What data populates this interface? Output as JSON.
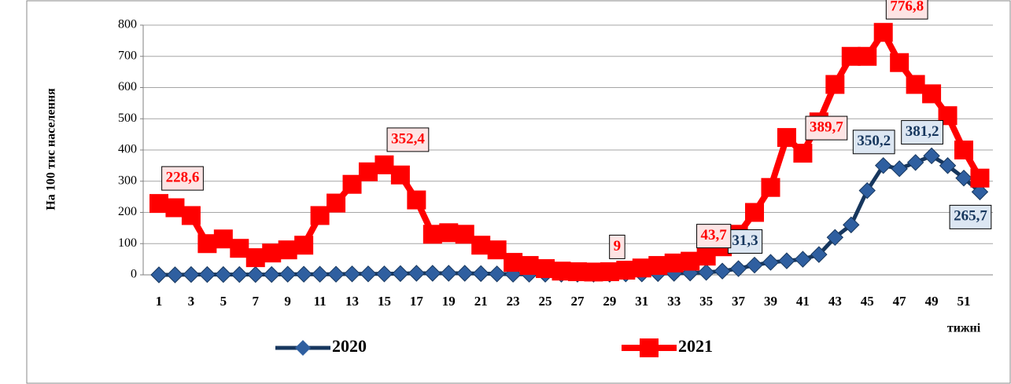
{
  "chart_data": {
    "type": "line",
    "y_label": "На 100 тис населення",
    "x_label": "тижні",
    "categories": [
      1,
      null,
      3,
      null,
      5,
      null,
      7,
      null,
      9,
      null,
      11,
      null,
      13,
      null,
      15,
      null,
      17,
      null,
      19,
      null,
      21,
      null,
      23,
      null,
      25,
      null,
      27,
      null,
      29,
      null,
      31,
      null,
      33,
      null,
      35,
      null,
      37,
      null,
      39,
      null,
      41,
      null,
      43,
      null,
      45,
      null,
      47,
      null,
      49,
      null,
      51,
      null
    ],
    "series": [
      {
        "name": "2020",
        "color": "#17375e",
        "marker_color": "#2f5fa0",
        "marker": "diamond",
        "label_fill": "#dce6f2",
        "values": [
          0,
          0,
          1,
          1,
          1,
          1,
          1,
          1,
          2,
          2,
          2,
          2,
          3,
          3,
          3,
          4,
          5,
          5,
          5,
          5,
          4,
          3,
          2,
          2,
          2,
          2,
          2,
          2,
          2,
          3,
          3,
          4,
          5,
          6,
          8,
          12,
          20,
          31.3,
          40,
          45,
          50,
          65,
          120,
          160,
          270,
          350.2,
          340,
          360,
          381.2,
          350,
          310,
          265.7
        ],
        "value_labels": [
          null,
          null,
          null,
          null,
          null,
          null,
          null,
          null,
          null,
          null,
          null,
          null,
          null,
          null,
          null,
          null,
          null,
          null,
          null,
          null,
          null,
          null,
          null,
          null,
          null,
          null,
          null,
          null,
          null,
          null,
          null,
          null,
          null,
          null,
          null,
          null,
          null,
          "31,3",
          null,
          null,
          null,
          null,
          null,
          null,
          null,
          "350,2",
          null,
          null,
          "381,2",
          null,
          null,
          "265,7"
        ]
      },
      {
        "name": "2021",
        "color": "#ff0000",
        "marker_color": "#ff0000",
        "marker": "square",
        "label_fill": "#fde4e4",
        "values": [
          228.6,
          215,
          190,
          100,
          115,
          85,
          55,
          70,
          80,
          95,
          190,
          230,
          290,
          330,
          352.4,
          320,
          240,
          130,
          135,
          130,
          95,
          80,
          40,
          30,
          20,
          12,
          10,
          9,
          10,
          15,
          22,
          30,
          38,
          43.7,
          60,
          90,
          130,
          200,
          280,
          440,
          389.7,
          490,
          610,
          700,
          700,
          776.8,
          680,
          610,
          580,
          510,
          400,
          310
        ],
        "value_labels": [
          "228,6",
          null,
          null,
          null,
          null,
          null,
          null,
          null,
          null,
          null,
          null,
          null,
          null,
          null,
          "352,4",
          null,
          null,
          null,
          null,
          null,
          null,
          null,
          null,
          null,
          null,
          null,
          null,
          "9",
          null,
          null,
          null,
          null,
          null,
          "43,7",
          null,
          null,
          null,
          null,
          null,
          null,
          "389,7",
          null,
          null,
          null,
          null,
          "776,8",
          null,
          null,
          null,
          null,
          null,
          null
        ]
      }
    ],
    "ylim": [
      0,
      800
    ],
    "yticks": [
      0,
      100,
      200,
      300,
      400,
      500,
      600,
      700,
      800
    ],
    "grid": true
  }
}
